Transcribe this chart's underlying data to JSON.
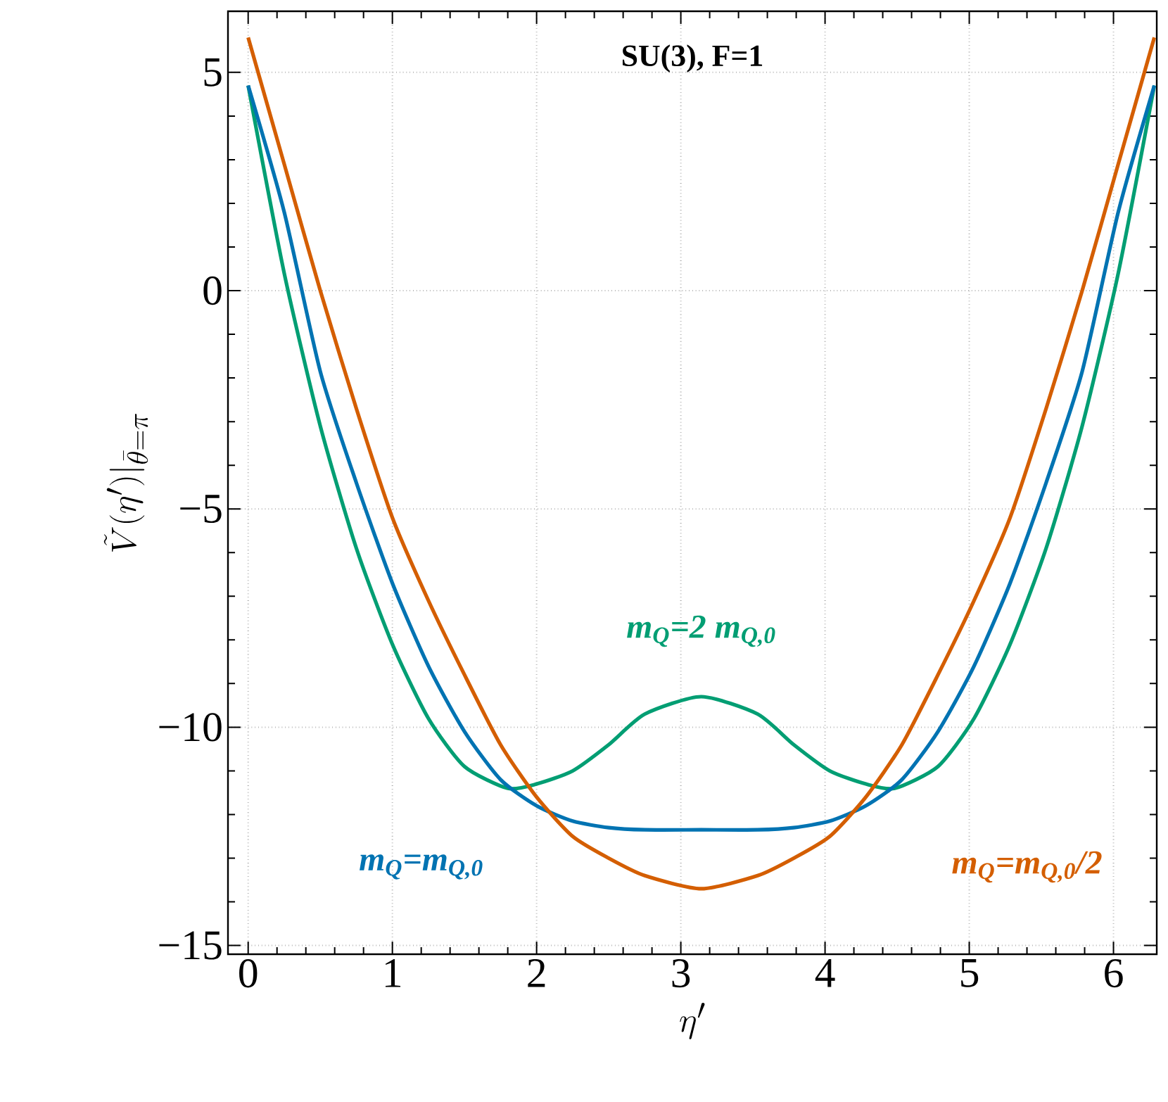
{
  "chart_data": {
    "type": "line",
    "xlabel": "\\eta'",
    "ylabel": "\\tilde{V}(\\eta')|_{\\bar{\\theta}=\\pi}",
    "annotations": [
      "SU(3), F=1"
    ],
    "xlim": [
      -0.14,
      6.3
    ],
    "ylim": [
      -15.2,
      6.4
    ],
    "xticks": [
      0,
      1,
      2,
      3,
      4,
      5,
      6
    ],
    "yticks": [
      {
        "value": -15,
        "label": "−15"
      },
      {
        "value": -10,
        "label": "−10"
      },
      {
        "value": -5,
        "label": "−5"
      },
      0,
      5
    ],
    "grid": true,
    "legend": false,
    "marker": "none",
    "line_style": "solid",
    "series": [
      {
        "name": "m$_{Q}$=2 m$_{Q,0}$",
        "color": "#029e73",
        "x": [
          0,
          0.25,
          0.5,
          0.75,
          1,
          1.25,
          1.5,
          1.8,
          2,
          2.25,
          2.5,
          2.75,
          3.1416,
          3.533,
          3.783,
          4.033,
          4.283,
          4.483,
          4.783,
          5.033,
          5.283,
          5.533,
          5.783,
          6.033,
          6.2832
        ],
        "values": [
          4.7,
          0.4,
          -3.1,
          -5.9,
          -8.1,
          -9.8,
          -10.9,
          -11.4,
          -11.3,
          -11.0,
          -10.4,
          -9.7,
          -9.3,
          -9.7,
          -10.4,
          -11.0,
          -11.3,
          -11.4,
          -10.9,
          -9.8,
          -8.1,
          -5.9,
          -3.1,
          0.4,
          4.7
        ]
      },
      {
        "name": "m$_{Q}$=m$_{Q,0}$",
        "color": "#0173b2",
        "x": [
          0,
          0.25,
          0.5,
          0.75,
          1,
          1.25,
          1.5,
          1.75,
          2,
          2.25,
          2.5,
          2.75,
          3.1416,
          3.533,
          3.783,
          4.033,
          4.283,
          4.533,
          4.783,
          5.033,
          5.283,
          5.533,
          5.783,
          6.033,
          6.2832
        ],
        "values": [
          4.7,
          1.8,
          -1.85,
          -4.4,
          -6.7,
          -8.6,
          -10.1,
          -11.2,
          -11.8,
          -12.15,
          -12.3,
          -12.35,
          -12.35,
          -12.35,
          -12.3,
          -12.15,
          -11.8,
          -11.2,
          -10.1,
          -8.6,
          -6.7,
          -4.4,
          -1.85,
          1.8,
          4.7
        ]
      },
      {
        "name": "m$_{Q}$=m$_{Q,0}$/2",
        "color": "#d45e00",
        "x": [
          0,
          0.25,
          0.5,
          0.75,
          1,
          1.25,
          1.5,
          1.75,
          2,
          2.25,
          2.5,
          2.75,
          3.1416,
          3.533,
          3.783,
          4.033,
          4.283,
          4.533,
          4.783,
          5.033,
          5.283,
          5.533,
          5.783,
          6.033,
          6.2832
        ],
        "values": [
          5.8,
          2.9,
          0.0,
          -2.7,
          -5.2,
          -7.1,
          -8.8,
          -10.4,
          -11.6,
          -12.5,
          -13.0,
          -13.4,
          -13.7,
          -13.4,
          -13.0,
          -12.5,
          -11.6,
          -10.4,
          -8.8,
          -7.1,
          -5.2,
          -2.7,
          0.0,
          2.9,
          5.8
        ]
      }
    ]
  }
}
